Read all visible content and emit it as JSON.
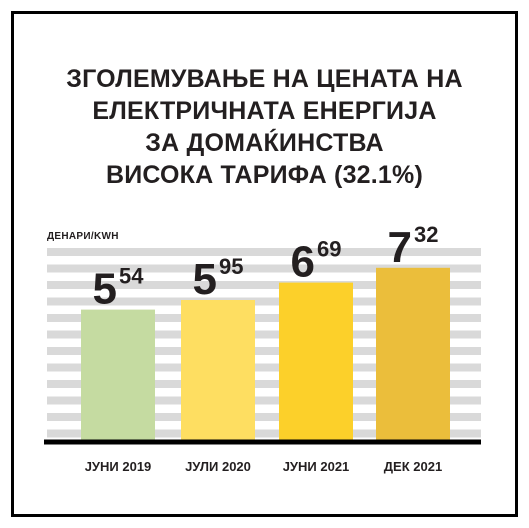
{
  "header": {
    "title_lines": [
      "ЗГОЛЕМУВАЊЕ НА ЦЕНАТА НА",
      "ЕЛЕКТРИЧНАТА ЕНЕРГИЈА",
      "ЗА ДОМАЌИНСТВА",
      "ВИСОКА ТАРИФА  (32.1%)"
    ]
  },
  "chart_data": {
    "type": "bar",
    "ylabel": "ДЕНАРИ/KWH",
    "ylim": [
      0,
      8.5
    ],
    "grid": true,
    "categories": [
      "ЈУНИ 2019",
      "ЈУЛИ 2020",
      "ЈУНИ 2021",
      "ДЕК 2021"
    ],
    "values": [
      5.54,
      5.95,
      6.69,
      7.32
    ],
    "value_labels": [
      {
        "main": "5",
        "sup": "54"
      },
      {
        "main": "5",
        "sup": "95"
      },
      {
        "main": "6",
        "sup": "69"
      },
      {
        "main": "7",
        "sup": "32"
      }
    ],
    "colors": [
      "#c5dba1",
      "#fede61",
      "#fcd02a",
      "#ebbe3b"
    ],
    "grid_color": "#d9d9d9",
    "axis_color": "#000000"
  }
}
